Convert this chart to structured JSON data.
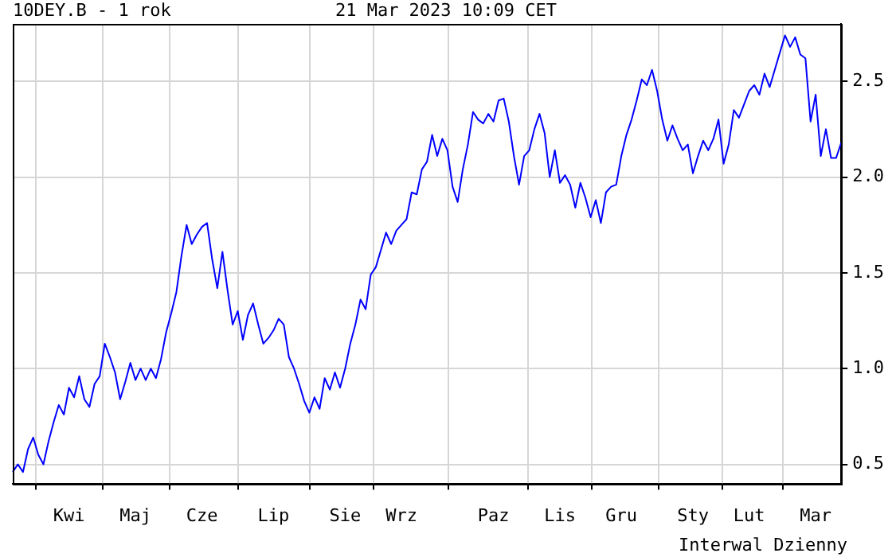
{
  "chart_data": {
    "type": "line",
    "title": "10DEY.B - 1 rok",
    "subtitle": "21 Mar 2023 10:09 CET",
    "annotations": [
      "Interwal Dzienny"
    ],
    "categories": [
      null,
      null,
      null,
      null,
      null,
      null,
      null,
      null,
      null,
      null,
      null,
      "Kwi",
      null,
      null,
      null,
      null,
      null,
      null,
      null,
      null,
      null,
      null,
      null,
      null,
      "Maj",
      null,
      null,
      null,
      null,
      null,
      null,
      null,
      null,
      null,
      null,
      null,
      null,
      "Cze",
      null,
      null,
      null,
      null,
      null,
      null,
      null,
      null,
      null,
      null,
      null,
      null,
      null,
      "Lip",
      null,
      null,
      null,
      null,
      null,
      null,
      null,
      null,
      null,
      null,
      null,
      null,
      null,
      "Sie",
      null,
      null,
      null,
      null,
      null,
      null,
      null,
      null,
      null,
      null,
      "Wrz",
      null,
      null,
      null,
      null,
      null,
      null,
      null,
      null,
      null,
      null,
      null,
      null,
      null,
      null,
      null,
      null,
      null,
      "Paz",
      null,
      null,
      null,
      null,
      null,
      null,
      null,
      null,
      null,
      null,
      null,
      null,
      "Lis",
      null,
      null,
      null,
      null,
      null,
      null,
      null,
      null,
      null,
      null,
      null,
      "Gru",
      null,
      null,
      null,
      null,
      null,
      null,
      null,
      null,
      null,
      null,
      null,
      null,
      null,
      "Sty",
      null,
      null,
      null,
      null,
      null,
      null,
      null,
      null,
      null,
      null,
      "Lut",
      null,
      null,
      null,
      null,
      null,
      null,
      null,
      null,
      null,
      null,
      null,
      null,
      "Mar",
      null,
      null,
      null,
      null,
      null
    ],
    "values": [
      0.46,
      0.5,
      0.46,
      0.58,
      0.64,
      0.55,
      0.5,
      0.62,
      0.72,
      0.81,
      0.76,
      0.9,
      0.85,
      0.96,
      0.84,
      0.8,
      0.92,
      0.96,
      1.13,
      1.06,
      0.98,
      0.84,
      0.93,
      1.03,
      0.94,
      1.0,
      0.94,
      1.0,
      0.95,
      1.05,
      1.19,
      1.29,
      1.4,
      1.59,
      1.75,
      1.65,
      1.7,
      1.74,
      1.76,
      1.57,
      1.42,
      1.61,
      1.41,
      1.23,
      1.3,
      1.15,
      1.28,
      1.34,
      1.23,
      1.13,
      1.16,
      1.2,
      1.26,
      1.23,
      1.06,
      1.0,
      0.92,
      0.83,
      0.77,
      0.85,
      0.79,
      0.95,
      0.89,
      0.98,
      0.9,
      1.0,
      1.13,
      1.23,
      1.36,
      1.31,
      1.49,
      1.53,
      1.62,
      1.71,
      1.65,
      1.72,
      1.75,
      1.78,
      1.92,
      1.91,
      2.04,
      2.08,
      2.22,
      2.11,
      2.2,
      2.14,
      1.95,
      1.87,
      2.04,
      2.17,
      2.34,
      2.3,
      2.28,
      2.33,
      2.29,
      2.4,
      2.41,
      2.29,
      2.11,
      1.96,
      2.11,
      2.14,
      2.25,
      2.33,
      2.23,
      2.0,
      2.14,
      1.97,
      2.01,
      1.96,
      1.84,
      1.97,
      1.89,
      1.79,
      1.88,
      1.76,
      1.92,
      1.95,
      1.96,
      2.11,
      2.22,
      2.3,
      2.4,
      2.51,
      2.48,
      2.56,
      2.45,
      2.3,
      2.19,
      2.27,
      2.2,
      2.14,
      2.17,
      2.02,
      2.11,
      2.19,
      2.14,
      2.2,
      2.3,
      2.07,
      2.17,
      2.35,
      2.31,
      2.38,
      2.45,
      2.48,
      2.43,
      2.54,
      2.47,
      2.56,
      2.65,
      2.74,
      2.68,
      2.73,
      2.64,
      2.62,
      2.29,
      2.43,
      2.11,
      2.25,
      2.1,
      2.1,
      2.18
    ],
    "color": "#0000ff",
    "line_style": "solid",
    "marker": "none",
    "grid": true,
    "legend": false,
    "ylim": [
      0.4,
      2.8
    ],
    "yticks": [
      0.5,
      {
        "value": 1,
        "label": "1.0"
      },
      1.5,
      {
        "value": 2,
        "label": "2.0"
      },
      2.5
    ]
  }
}
